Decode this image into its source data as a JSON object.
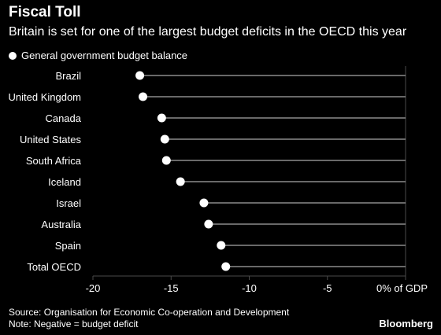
{
  "title": "Fiscal Toll",
  "subtitle": "Britain is set for one of the largest budget deficits in the OECD this year",
  "legend_label": "General government budget balance",
  "source": "Source: Organisation for Economic Co-operation and Development",
  "note": "Note: Negative = budget deficit",
  "brand": "Bloomberg",
  "colors": {
    "background": "#000000",
    "marker": "#ffffff",
    "line": "#8c8c8c",
    "grid": "#4a4a4a"
  },
  "chart_data": {
    "type": "scatter",
    "categories": [
      "Brazil",
      "United Kingdom",
      "Canada",
      "United States",
      "South Africa",
      "Iceland",
      "Israel",
      "Australia",
      "Spain",
      "Total OECD"
    ],
    "series": [
      {
        "name": "General government budget balance",
        "values": [
          -17.0,
          -16.8,
          -15.6,
          -15.4,
          -15.3,
          -14.4,
          -12.9,
          -12.6,
          -11.8,
          -11.5
        ]
      }
    ],
    "xlim": [
      -20,
      0
    ],
    "xticks": [
      "-20",
      "-15",
      "-10",
      "-5",
      "0% of GDP"
    ],
    "xtick_values": [
      -20,
      -15,
      -10,
      -5,
      0
    ],
    "grid": true,
    "legend_position": "top-left"
  }
}
